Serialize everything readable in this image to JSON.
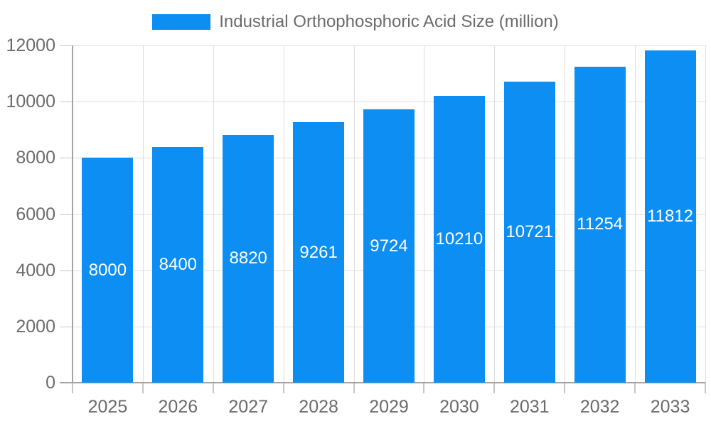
{
  "chart_data": {
    "type": "bar",
    "title": "Industrial Orthophosphoric Acid Size (million)",
    "legend": {
      "label": "Industrial Orthophosphoric Acid Size (million)",
      "position": "top"
    },
    "categories": [
      "2025",
      "2026",
      "2027",
      "2028",
      "2029",
      "2030",
      "2031",
      "2032",
      "2033"
    ],
    "values": [
      8000,
      8400,
      8820,
      9261,
      9724,
      10210,
      10721,
      11254,
      11812
    ],
    "bar_value_labels": [
      "8000",
      "8400",
      "8820",
      "9261",
      "9724",
      "10210",
      "10721",
      "11254",
      "11812"
    ],
    "xlabel": "",
    "ylabel": "",
    "ylim": [
      0,
      12000
    ],
    "yticks": [
      0,
      2000,
      4000,
      6000,
      8000,
      10000,
      12000
    ],
    "ytick_labels": [
      "0",
      "2000",
      "4000",
      "6000",
      "8000",
      "10000",
      "12000"
    ],
    "grid": true,
    "legend_position": "top",
    "colors": {
      "bar": "#0d8ef2",
      "bar_label": "#ffffff",
      "axis_text": "#6b6b6b",
      "grid_line": "#dedede",
      "axis_line": "#a3a3a3",
      "tick_mark": "#c6c6c6",
      "background": "#ffffff"
    }
  }
}
